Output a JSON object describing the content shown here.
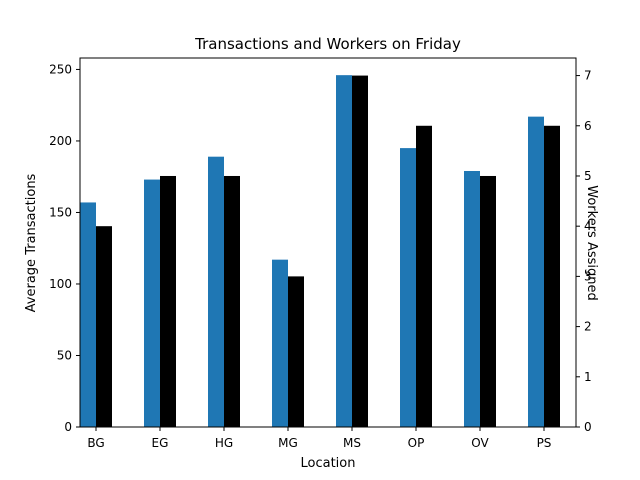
{
  "chart_data": {
    "type": "bar",
    "title": "Transactions and Workers on Friday",
    "xlabel": "Location",
    "ylabel": "Average Transactions",
    "y2label": "Workers Assigned",
    "categories": [
      "BG",
      "EG",
      "HG",
      "MG",
      "MS",
      "OP",
      "OV",
      "PS"
    ],
    "ylim": [
      0,
      258
    ],
    "y2lim": [
      0,
      7.35
    ],
    "yticks": [
      "0",
      "50",
      "100",
      "150",
      "200",
      "250"
    ],
    "y2ticks": [
      "0",
      "1",
      "2",
      "3",
      "4",
      "5",
      "6",
      "7"
    ],
    "grid": false,
    "series": [
      {
        "values": [
          157,
          173,
          189,
          117,
          246,
          195,
          179,
          217
        ],
        "color": "#1f77b4",
        "axis": "left"
      },
      {
        "values": [
          4,
          5,
          5,
          3,
          7,
          6,
          5,
          6
        ],
        "color": "#000000",
        "axis": "right"
      }
    ]
  }
}
